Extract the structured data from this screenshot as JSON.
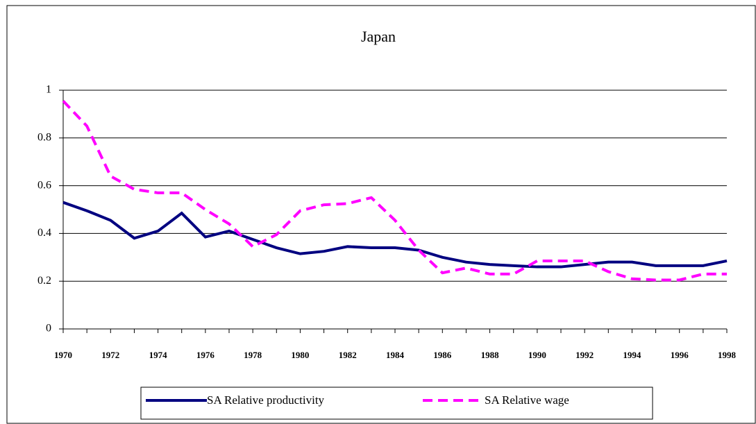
{
  "chart_data": {
    "type": "line",
    "title": "Japan",
    "x": [
      1970,
      1971,
      1972,
      1973,
      1974,
      1975,
      1976,
      1977,
      1978,
      1979,
      1980,
      1981,
      1982,
      1983,
      1984,
      1985,
      1986,
      1987,
      1988,
      1989,
      1990,
      1991,
      1992,
      1993,
      1994,
      1995,
      1996,
      1997,
      1998
    ],
    "series": [
      {
        "name": "SA Relative productivity",
        "color": "#000080",
        "style": "solid",
        "values": [
          0.53,
          0.495,
          0.455,
          0.38,
          0.41,
          0.485,
          0.385,
          0.41,
          0.375,
          0.34,
          0.315,
          0.325,
          0.345,
          0.34,
          0.34,
          0.33,
          0.3,
          0.28,
          0.27,
          0.265,
          0.26,
          0.26,
          0.27,
          0.28,
          0.28,
          0.265,
          0.265,
          0.265,
          0.285
        ]
      },
      {
        "name": "SA Relative wage",
        "color": "#ff00ff",
        "style": "dashed",
        "values": [
          0.955,
          0.85,
          0.64,
          0.585,
          0.57,
          0.57,
          0.5,
          0.44,
          0.345,
          0.395,
          0.495,
          0.52,
          0.525,
          0.55,
          0.455,
          0.33,
          0.235,
          0.255,
          0.23,
          0.23,
          0.285,
          0.285,
          0.285,
          0.24,
          0.21,
          0.205,
          0.205,
          0.23,
          0.23
        ]
      }
    ],
    "xlim": [
      1970,
      1998
    ],
    "xticks": [
      1970,
      1972,
      1974,
      1976,
      1978,
      1980,
      1982,
      1984,
      1986,
      1988,
      1990,
      1992,
      1994,
      1996,
      1998
    ],
    "ylim": [
      0,
      1
    ],
    "yticks": [
      0,
      0.2,
      0.4,
      0.6,
      0.8,
      1
    ],
    "grid": true,
    "legend": "bottom"
  }
}
